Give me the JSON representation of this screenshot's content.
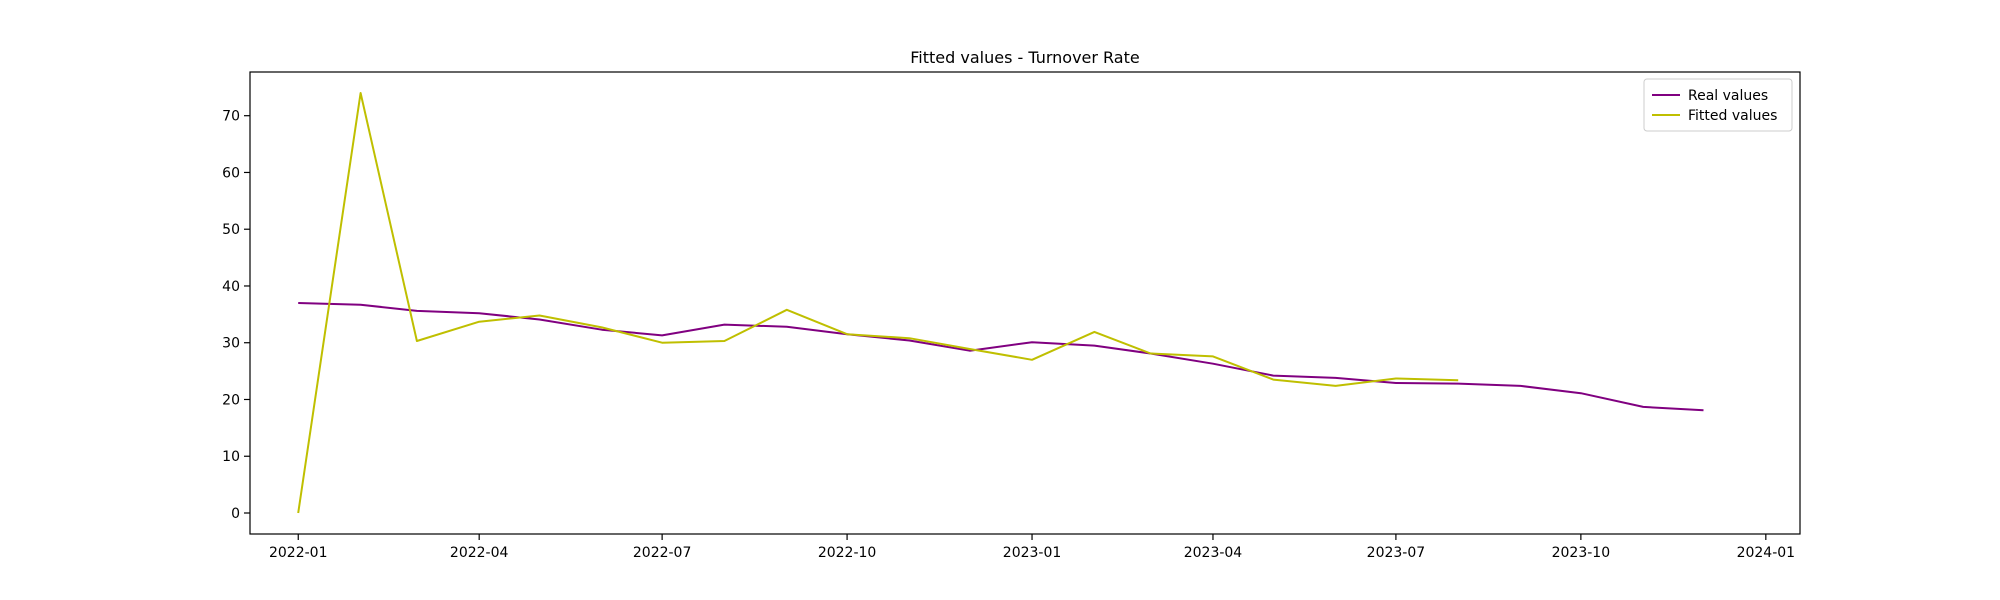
{
  "chart_data": {
    "type": "line",
    "title": "Fitted values - Turnover Rate",
    "xlabel": "",
    "ylabel": "",
    "xlim": [
      "2021-12-08",
      "2024-01-18"
    ],
    "ylim": [
      -3.7,
      77.7
    ],
    "x_ticks": [
      "2022-01",
      "2022-04",
      "2022-07",
      "2022-10",
      "2023-01",
      "2023-04",
      "2023-07",
      "2023-10",
      "2024-01"
    ],
    "y_ticks": [
      0,
      10,
      20,
      30,
      40,
      50,
      60,
      70
    ],
    "grid": false,
    "legend": {
      "position": "top-right"
    },
    "series": [
      {
        "name": "Real values",
        "color": "#800080",
        "x": [
          "2022-01-01",
          "2022-02-01",
          "2022-03-01",
          "2022-04-01",
          "2022-05-01",
          "2022-06-01",
          "2022-07-01",
          "2022-08-01",
          "2022-09-01",
          "2022-10-01",
          "2022-11-01",
          "2022-12-01",
          "2023-01-01",
          "2023-02-01",
          "2023-03-01",
          "2023-04-01",
          "2023-05-01",
          "2023-06-01",
          "2023-07-01",
          "2023-08-01",
          "2023-09-01",
          "2023-10-01",
          "2023-11-01",
          "2023-12-01"
        ],
        "y": [
          37.0,
          36.7,
          35.6,
          35.2,
          34.1,
          32.3,
          31.3,
          33.2,
          32.8,
          31.5,
          30.4,
          28.6,
          30.1,
          29.5,
          28.1,
          26.3,
          24.2,
          23.8,
          22.9,
          22.8,
          22.4,
          21.1,
          18.7,
          18.1
        ]
      },
      {
        "name": "Fitted values",
        "color": "#bfbf00",
        "x": [
          "2022-01-01",
          "2022-02-01",
          "2022-03-01",
          "2022-04-01",
          "2022-05-01",
          "2022-06-01",
          "2022-07-01",
          "2022-08-01",
          "2022-09-01",
          "2022-10-01",
          "2022-11-01",
          "2022-12-01",
          "2023-01-01",
          "2023-02-01",
          "2023-03-01",
          "2023-04-01",
          "2023-05-01",
          "2023-06-01",
          "2023-07-01",
          "2023-08-01"
        ],
        "y": [
          0.0,
          74.0,
          30.3,
          33.7,
          34.8,
          32.7,
          30.0,
          30.3,
          35.8,
          31.5,
          30.8,
          28.9,
          27.0,
          31.9,
          28.1,
          27.6,
          23.5,
          22.4,
          23.7,
          23.4
        ]
      }
    ]
  }
}
